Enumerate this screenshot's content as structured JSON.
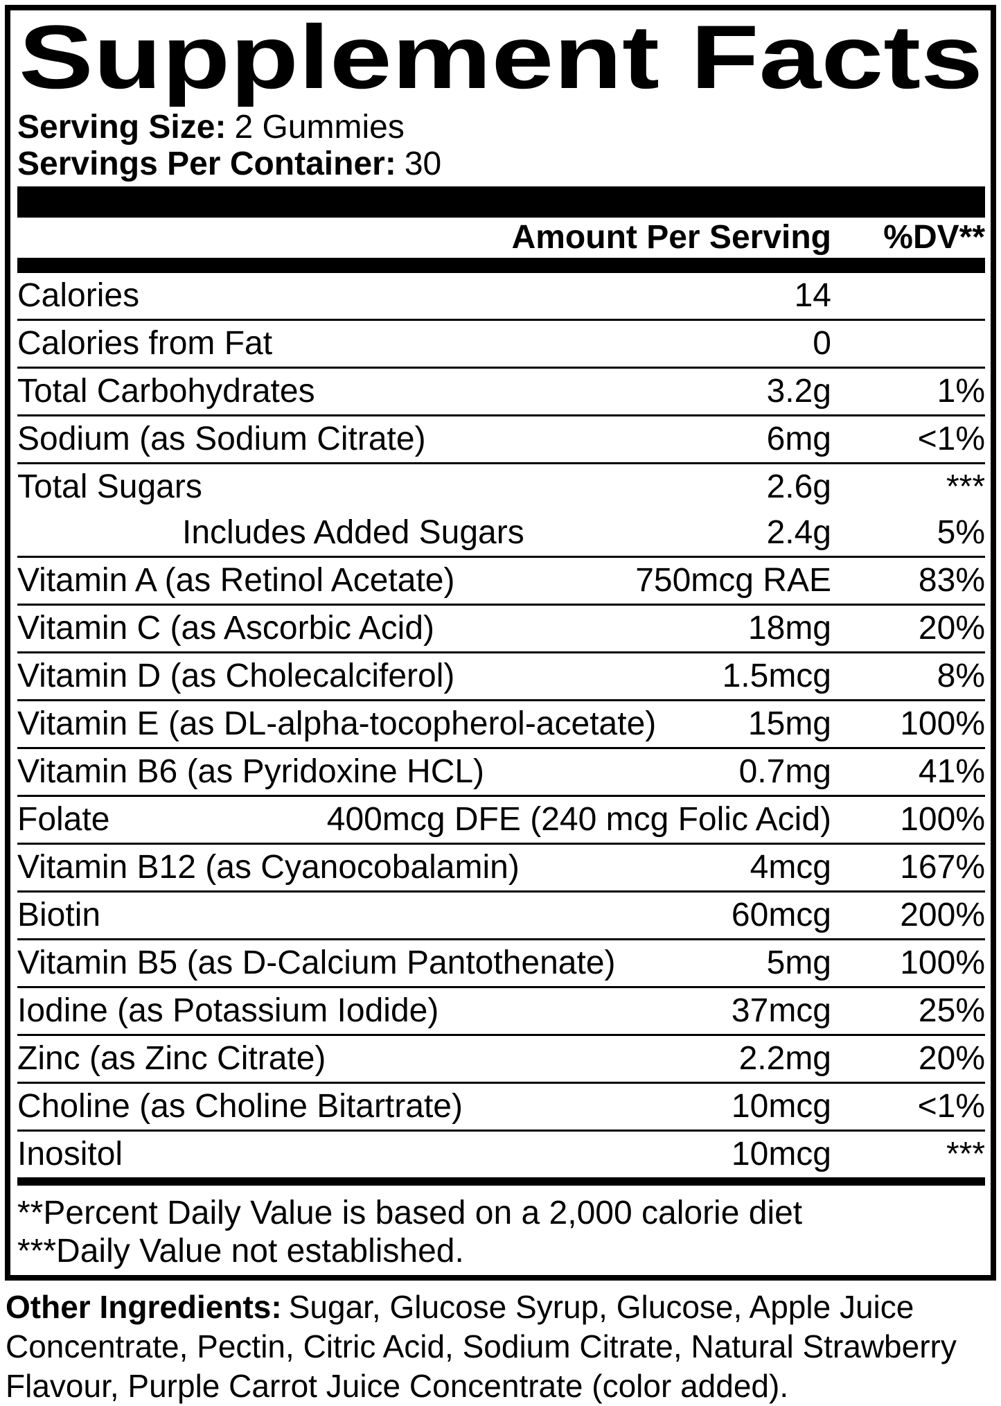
{
  "colors": {
    "text": "#000000",
    "background": "#ffffff"
  },
  "label": {
    "title": "Supplement Facts",
    "serving": {
      "size_label": "Serving Size:",
      "size_value": "2 Gummies",
      "container_label": "Servings Per Container:",
      "container_value": "30"
    },
    "columns": {
      "amount_header": "Amount Per Serving",
      "dv_header": "%DV**"
    },
    "rows": [
      {
        "name": "Calories",
        "amount": "14",
        "dv": ""
      },
      {
        "name": "Calories from Fat",
        "amount": "0",
        "dv": ""
      },
      {
        "name": "Total Carbohydrates",
        "amount": "3.2g",
        "dv": "1%"
      },
      {
        "name": "Sodium (as Sodium Citrate)",
        "amount": "6mg",
        "dv": "<1%"
      },
      {
        "name": "Total Sugars",
        "amount": "2.6g",
        "dv": "***",
        "no_rule": true
      },
      {
        "name": "Includes Added Sugars",
        "amount": "2.4g",
        "dv": "5%",
        "indent": true
      },
      {
        "name": "Vitamin A (as Retinol Acetate)",
        "amount": "750mcg RAE",
        "dv": "83%"
      },
      {
        "name": "Vitamin C (as Ascorbic Acid)",
        "amount": "18mg",
        "dv": "20%"
      },
      {
        "name": "Vitamin D (as Cholecalciferol)",
        "amount": "1.5mcg",
        "dv": "8%"
      },
      {
        "name": "Vitamin E (as DL-alpha-tocopherol-acetate)",
        "amount": "15mg",
        "dv": "100%"
      },
      {
        "name": "Vitamin B6 (as Pyridoxine HCL)",
        "amount": "0.7mg",
        "dv": "41%"
      },
      {
        "name": "Folate",
        "amount": "400mcg DFE (240 mcg Folic Acid)",
        "dv": "100%"
      },
      {
        "name": "Vitamin B12 (as Cyanocobalamin)",
        "amount": "4mcg",
        "dv": "167%"
      },
      {
        "name": "Biotin",
        "amount": "60mcg",
        "dv": "200%"
      },
      {
        "name": "Vitamin B5 (as D-Calcium Pantothenate)",
        "amount": "5mg",
        "dv": "100%"
      },
      {
        "name": "Iodine (as Potassium Iodide)",
        "amount": "37mcg",
        "dv": "25%"
      },
      {
        "name": "Zinc (as Zinc Citrate)",
        "amount": "2.2mg",
        "dv": "20%"
      },
      {
        "name": "Choline (as Choline Bitartrate)",
        "amount": "10mcg",
        "dv": "<1%"
      },
      {
        "name": "Inositol",
        "amount": "10mcg",
        "dv": "***"
      }
    ],
    "footnotes": {
      "dv_note": "**Percent Daily Value is based on a 2,000 calorie diet",
      "not_established_note": "***Daily Value not established."
    }
  },
  "other_ingredients": {
    "label": "Other Ingredients:",
    "line1_rest": "Sugar, Glucose Syrup, Glucose, Apple Juice",
    "line2": "Concentrate, Pectin, Citric Acid, Sodium Citrate, Natural Strawberry",
    "line3": "Flavour, Purple Carrot Juice Concentrate (color added)."
  }
}
